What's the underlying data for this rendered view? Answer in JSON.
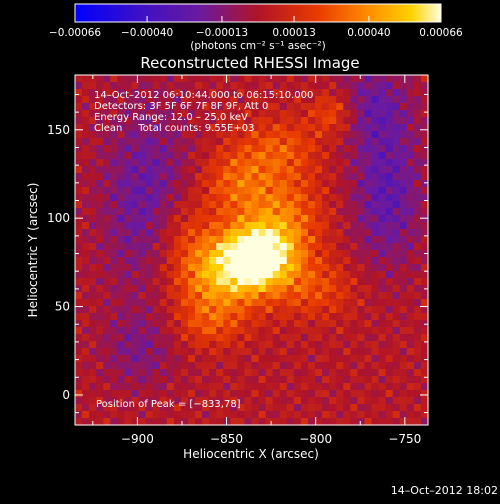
{
  "chart_data": {
    "type": "heatmap",
    "title": "Reconstructed RHESSI Image",
    "xlabel": "Heliocentric X (arcsec)",
    "ylabel": "Heliocentric Y (arcsec)",
    "xlim": [
      -935,
      -737
    ],
    "ylim": [
      -17,
      181
    ],
    "x_ticks": [
      -900,
      -850,
      -800,
      -750
    ],
    "y_ticks": [
      0,
      50,
      100,
      150
    ],
    "x_tick_labels": [
      "−900",
      "−850",
      "−800",
      "−750"
    ],
    "y_tick_labels": [
      "0",
      "50",
      "100",
      "150"
    ],
    "colorbar": {
      "range": [
        -0.00066,
        0.00066
      ],
      "ticks": [
        -0.00066,
        -0.0004,
        -0.00013,
        0.00013,
        0.0004,
        0.00066
      ],
      "tick_labels": [
        "−0.00066",
        "−0.00040",
        "−0.00013",
        "0.00013",
        "0.00040",
        "0.00066"
      ],
      "unit_label": "(photons cm⁻² s⁻¹ asec⁻²)"
    },
    "annotations": [
      "14–Oct–2012 06:10:44.000 to 06:15:10.000",
      "Detectors: 3F 5F 6F 7F 8F 9F, Att 0",
      "Energy Range: 12.0 – 25.0 keV",
      "Clean     Total counts: 9.55E+03"
    ],
    "peak_label": "Position of Peak = [−833,78]",
    "peak": [
      -833,
      78
    ],
    "sources": [
      {
        "x": -833,
        "y": 78,
        "amp": 0.00066,
        "sx": 14,
        "sy": 12
      },
      {
        "x": -855,
        "y": 68,
        "amp": 0.00042,
        "sx": 20,
        "sy": 16
      },
      {
        "x": -818,
        "y": 100,
        "amp": 0.0003,
        "sx": 16,
        "sy": 18
      },
      {
        "x": -845,
        "y": 120,
        "amp": 0.00025,
        "sx": 14,
        "sy": 14
      },
      {
        "x": -820,
        "y": 140,
        "amp": 0.00022,
        "sx": 16,
        "sy": 12
      },
      {
        "x": -790,
        "y": 160,
        "amp": 0.00026,
        "sx": 9,
        "sy": 9
      },
      {
        "x": -800,
        "y": 60,
        "amp": 0.0002,
        "sx": 16,
        "sy": 12
      },
      {
        "x": -860,
        "y": 40,
        "amp": 0.00018,
        "sx": 14,
        "sy": 10
      },
      {
        "x": -875,
        "y": 95,
        "amp": 0.00016,
        "sx": 12,
        "sy": 14
      },
      {
        "x": -895,
        "y": 110,
        "amp": -0.00025,
        "sx": 18,
        "sy": 40
      },
      {
        "x": -760,
        "y": 115,
        "amp": -0.00028,
        "sx": 14,
        "sy": 30
      },
      {
        "x": -770,
        "y": 165,
        "amp": -0.0002,
        "sx": 16,
        "sy": 16
      },
      {
        "x": -900,
        "y": 25,
        "amp": -0.00015,
        "sx": 14,
        "sy": 16
      }
    ]
  },
  "footer": {
    "date": "14–Oct–2012 18:02"
  }
}
